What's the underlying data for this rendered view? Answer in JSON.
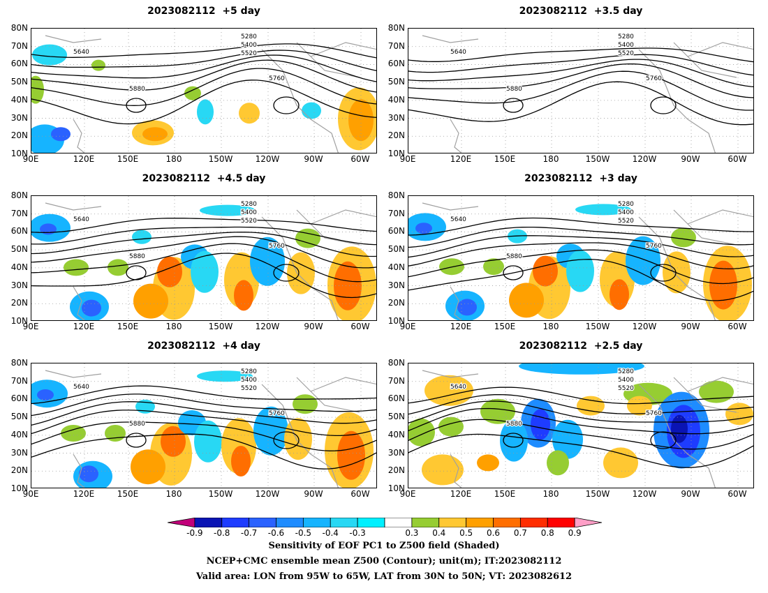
{
  "panels": [
    {
      "title": "2023082112  +5 day",
      "shaded": "weak"
    },
    {
      "title": "2023082112  +3.5 day",
      "shaded": "none"
    },
    {
      "title": "2023082112  +4.5 day",
      "shaded": "medium"
    },
    {
      "title": "2023082112  +3 day",
      "shaded": "medium"
    },
    {
      "title": "2023082112  +4 day",
      "shaded": "medium"
    },
    {
      "title": "2023082112  +2.5 day",
      "shaded": "strong"
    }
  ],
  "axes": {
    "lat_labels": [
      "80N",
      "70N",
      "60N",
      "50N",
      "40N",
      "30N",
      "20N",
      "10N"
    ],
    "lon_labels": [
      "90E",
      "120E",
      "150E",
      "180",
      "150W",
      "120W",
      "90W",
      "60W"
    ]
  },
  "contours": {
    "labels": [
      "5280",
      "5400",
      "5520",
      "5640",
      "5760",
      "5880"
    ]
  },
  "colorbar": {
    "labels": [
      "-0.9",
      "-0.8",
      "-0.7",
      "-0.6",
      "-0.5",
      "-0.4",
      "-0.3",
      "0.3",
      "0.4",
      "0.5",
      "0.6",
      "0.7",
      "0.8",
      "0.9"
    ],
    "colors": [
      "#c2007a",
      "#0a14b4",
      "#1e3cff",
      "#2a62ff",
      "#1e8cff",
      "#16b4ff",
      "#28d8f4",
      "#00f0ff",
      "#ffffff",
      "#96cd32",
      "#ffc832",
      "#ffa000",
      "#ff6e00",
      "#ff2d00",
      "#ff0000",
      "#ff9fc7"
    ]
  },
  "footer": {
    "line1": "Sensitivity of EOF PC1 to Z500 field (Shaded)",
    "line2": "NCEP+CMC ensemble mean Z500 (Contour); unit(m); IT:2023082112",
    "line3": "Valid area: LON from 95W to 65W, LAT from 30N to 50N; VT: 2023082612"
  }
}
